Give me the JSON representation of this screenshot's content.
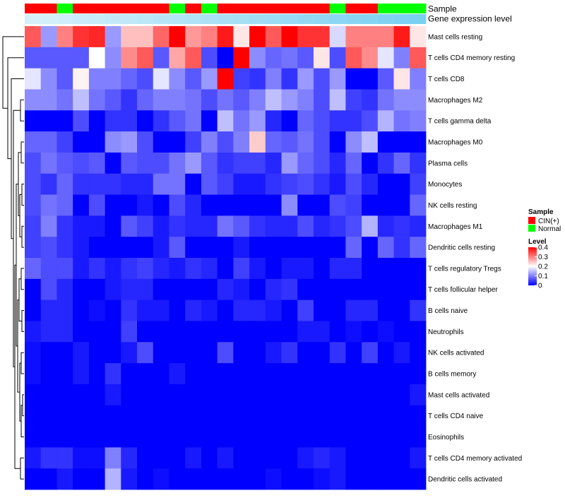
{
  "chart_data": {
    "type": "heatmap",
    "rows": [
      "Mast cells resting",
      "T cells CD4 memory resting",
      "T cells CD8",
      "Macrophages M2",
      "T cells gamma delta",
      "Macrophages M0",
      "Plasma cells",
      "Monocytes",
      "NK cells resting",
      "Macrophages M1",
      "Dendritic cells resting",
      "T cells regulatory  Tregs",
      "T cells follicular helper",
      "B cells naive",
      "Neutrophils",
      "NK cells activated",
      "B cells memory",
      "Mast cells activated",
      "T cells CD4 naive",
      "Eosinophils",
      "T cells CD4 memory activated",
      "Dendritic cells activated"
    ],
    "sample_annotation": [
      "CIN(+)",
      "CIN(+)",
      "Normal",
      "CIN(+)",
      "CIN(+)",
      "CIN(+)",
      "CIN(+)",
      "CIN(+)",
      "CIN(+)",
      "Normal",
      "CIN(+)",
      "Normal",
      "CIN(+)",
      "CIN(+)",
      "CIN(+)",
      "CIN(+)",
      "CIN(+)",
      "CIN(+)",
      "CIN(+)",
      "Normal",
      "CIN(+)",
      "CIN(+)",
      "Normal",
      "Normal",
      "Normal"
    ],
    "expression_annotation": [
      0.02,
      0.05,
      0.08,
      0.11,
      0.14,
      0.17,
      0.2,
      0.23,
      0.26,
      0.29,
      0.32,
      0.35,
      0.38,
      0.41,
      0.44,
      0.47,
      0.5,
      0.53,
      0.56,
      0.59,
      0.62,
      0.65,
      0.68,
      0.71,
      0.74
    ],
    "values": [
      [
        0.33,
        0.12,
        0.3,
        0.36,
        0.37,
        0.12,
        0.25,
        0.25,
        0.32,
        0.4,
        0.28,
        0.3,
        0.38,
        0.22,
        0.4,
        0.33,
        0.4,
        0.36,
        0.36,
        0.17,
        0.3,
        0.3,
        0.3,
        0.38,
        0.22
      ],
      [
        0.07,
        0.07,
        0.07,
        0.07,
        0.2,
        0.11,
        0.29,
        0.33,
        0.07,
        0.27,
        0.33,
        0.06,
        0.0,
        0.4,
        0.11,
        0.08,
        0.09,
        0.07,
        0.22,
        0.06,
        0.33,
        0.29,
        0.18,
        0.1,
        0.33
      ],
      [
        0.18,
        0.11,
        0.07,
        0.21,
        0.1,
        0.1,
        0.08,
        0.06,
        0.18,
        0.11,
        0.07,
        0.12,
        0.4,
        0.05,
        0.04,
        0.1,
        0.04,
        0.12,
        0.06,
        0.12,
        0.0,
        0.0,
        0.07,
        0.22,
        0.1
      ],
      [
        0.11,
        0.11,
        0.09,
        0.15,
        0.09,
        0.07,
        0.04,
        0.08,
        0.1,
        0.1,
        0.09,
        0.06,
        0.09,
        0.07,
        0.1,
        0.15,
        0.12,
        0.1,
        0.06,
        0.15,
        0.05,
        0.04,
        0.09,
        0.11,
        0.11
      ],
      [
        0.0,
        0.0,
        0.0,
        0.06,
        0.0,
        0.04,
        0.04,
        0.0,
        0.04,
        0.07,
        0.09,
        0.0,
        0.15,
        0.09,
        0.12,
        0.03,
        0.0,
        0.08,
        0.06,
        0.04,
        0.04,
        0.06,
        0.14,
        0.09,
        0.1
      ],
      [
        0.08,
        0.08,
        0.05,
        0.0,
        0.0,
        0.11,
        0.12,
        0.06,
        0.0,
        0.0,
        0.05,
        0.1,
        0.06,
        0.1,
        0.24,
        0.08,
        0.07,
        0.09,
        0.06,
        0.0,
        0.11,
        0.15,
        0.0,
        0.0,
        0.0
      ],
      [
        0.06,
        0.09,
        0.07,
        0.06,
        0.07,
        0.0,
        0.07,
        0.06,
        0.06,
        0.09,
        0.12,
        0.07,
        0.04,
        0.05,
        0.05,
        0.03,
        0.12,
        0.08,
        0.06,
        0.03,
        0.08,
        0.0,
        0.04,
        0.08,
        0.04
      ],
      [
        0.06,
        0.04,
        0.08,
        0.04,
        0.04,
        0.04,
        0.03,
        0.03,
        0.09,
        0.09,
        0.0,
        0.07,
        0.05,
        0.02,
        0.02,
        0.04,
        0.05,
        0.06,
        0.04,
        0.02,
        0.06,
        0.03,
        0.0,
        0.0,
        0.05
      ],
      [
        0.06,
        0.09,
        0.08,
        0.0,
        0.06,
        0.0,
        0.0,
        0.02,
        0.0,
        0.06,
        0.03,
        0.0,
        0.0,
        0.0,
        0.0,
        0.0,
        0.11,
        0.0,
        0.0,
        0.06,
        0.05,
        0.0,
        0.0,
        0.0,
        0.08
      ],
      [
        0.05,
        0.1,
        0.04,
        0.02,
        0.02,
        0.0,
        0.07,
        0.05,
        0.02,
        0.04,
        0.03,
        0.03,
        0.09,
        0.07,
        0.04,
        0.03,
        0.03,
        0.06,
        0.03,
        0.04,
        0.06,
        0.14,
        0.03,
        0.04,
        0.03
      ],
      [
        0.05,
        0.06,
        0.04,
        0.02,
        0.0,
        0.0,
        0.0,
        0.0,
        0.02,
        0.07,
        0.0,
        0.0,
        0.0,
        0.02,
        0.0,
        0.0,
        0.0,
        0.0,
        0.0,
        0.0,
        0.08,
        0.0,
        0.08,
        0.04,
        0.08
      ],
      [
        0.08,
        0.06,
        0.06,
        0.02,
        0.04,
        0.02,
        0.04,
        0.05,
        0.03,
        0.02,
        0.04,
        0.03,
        0.0,
        0.05,
        0.02,
        0.0,
        0.02,
        0.02,
        0.0,
        0.03,
        0.03,
        0.0,
        0.0,
        0.0,
        0.0
      ],
      [
        0.0,
        0.06,
        0.03,
        0.0,
        0.0,
        0.02,
        0.03,
        0.03,
        0.0,
        0.0,
        0.0,
        0.0,
        0.03,
        0.02,
        0.0,
        0.03,
        0.04,
        0.0,
        0.0,
        0.0,
        0.0,
        0.0,
        0.0,
        0.0,
        0.0
      ],
      [
        0.0,
        0.03,
        0.03,
        0.0,
        0.01,
        0.0,
        0.04,
        0.02,
        0.02,
        0.0,
        0.03,
        0.02,
        0.0,
        0.03,
        0.03,
        0.02,
        0.0,
        0.05,
        0.0,
        0.0,
        0.03,
        0.03,
        0.0,
        0.0,
        0.04
      ],
      [
        0.02,
        0.03,
        0.03,
        0.0,
        0.0,
        0.0,
        0.05,
        0.0,
        0.0,
        0.0,
        0.0,
        0.0,
        0.0,
        0.0,
        0.0,
        0.0,
        0.0,
        0.02,
        0.02,
        0.0,
        0.01,
        0.0,
        0.01,
        0.0,
        0.0
      ],
      [
        0.01,
        0.0,
        0.0,
        0.02,
        0.0,
        0.0,
        0.02,
        0.06,
        0.0,
        0.0,
        0.0,
        0.0,
        0.06,
        0.0,
        0.0,
        0.02,
        0.04,
        0.0,
        0.0,
        0.04,
        0.0,
        0.05,
        0.0,
        0.02,
        0.0
      ],
      [
        0.01,
        0.0,
        0.0,
        0.02,
        0.0,
        0.04,
        0.0,
        0.0,
        0.0,
        0.02,
        0.0,
        0.0,
        0.0,
        0.0,
        0.0,
        0.0,
        0.0,
        0.0,
        0.0,
        0.0,
        0.0,
        0.0,
        0.0,
        0.0,
        0.0
      ],
      [
        0.0,
        0.0,
        0.0,
        0.0,
        0.0,
        0.02,
        0.0,
        0.0,
        0.0,
        0.0,
        0.0,
        0.0,
        0.0,
        0.0,
        0.0,
        0.0,
        0.0,
        0.0,
        0.0,
        0.0,
        0.0,
        0.0,
        0.0,
        0.0,
        0.02
      ],
      [
        0.0,
        0.0,
        0.0,
        0.0,
        0.0,
        0.0,
        0.0,
        0.0,
        0.0,
        0.0,
        0.0,
        0.0,
        0.0,
        0.0,
        0.0,
        0.0,
        0.0,
        0.0,
        0.0,
        0.0,
        0.0,
        0.0,
        0.0,
        0.0,
        0.0
      ],
      [
        0.0,
        0.0,
        0.0,
        0.0,
        0.0,
        0.0,
        0.0,
        0.0,
        0.0,
        0.0,
        0.0,
        0.0,
        0.0,
        0.0,
        0.0,
        0.0,
        0.0,
        0.0,
        0.0,
        0.0,
        0.0,
        0.0,
        0.0,
        0.0,
        0.0
      ],
      [
        0.02,
        0.04,
        0.04,
        0.01,
        0.01,
        0.1,
        0.03,
        0.0,
        0.0,
        0.0,
        0.02,
        0.0,
        0.02,
        0.0,
        0.0,
        0.0,
        0.0,
        0.02,
        0.03,
        0.02,
        0.0,
        0.0,
        0.0,
        0.0,
        0.02
      ],
      [
        0.0,
        0.0,
        0.02,
        0.0,
        0.0,
        0.14,
        0.02,
        0.0,
        0.01,
        0.0,
        0.0,
        0.0,
        0.0,
        0.0,
        0.0,
        0.01,
        0.0,
        0.0,
        0.01,
        0.02,
        0.0,
        0.0,
        0.0,
        0.0,
        0.0
      ]
    ],
    "annotation_labels": {
      "sample": "Sample",
      "expression": "Gene expression level"
    },
    "legend": {
      "sample_title": "Sample",
      "sample_entries": [
        {
          "label": "CIN(+)",
          "color": "#ff0000"
        },
        {
          "label": "Normal",
          "color": "#00ff00"
        }
      ],
      "level_title": "Level",
      "level_ticks": [
        "0.4",
        "0.3",
        "0.2",
        "0.1",
        "0"
      ],
      "level_range": [
        0,
        0.4
      ]
    },
    "colors": {
      "low": "#0000ff",
      "mid": "#ffffff",
      "high": "#ff0000",
      "expr_low": "#d9f1fb",
      "expr_high": "#57c4ee"
    }
  }
}
